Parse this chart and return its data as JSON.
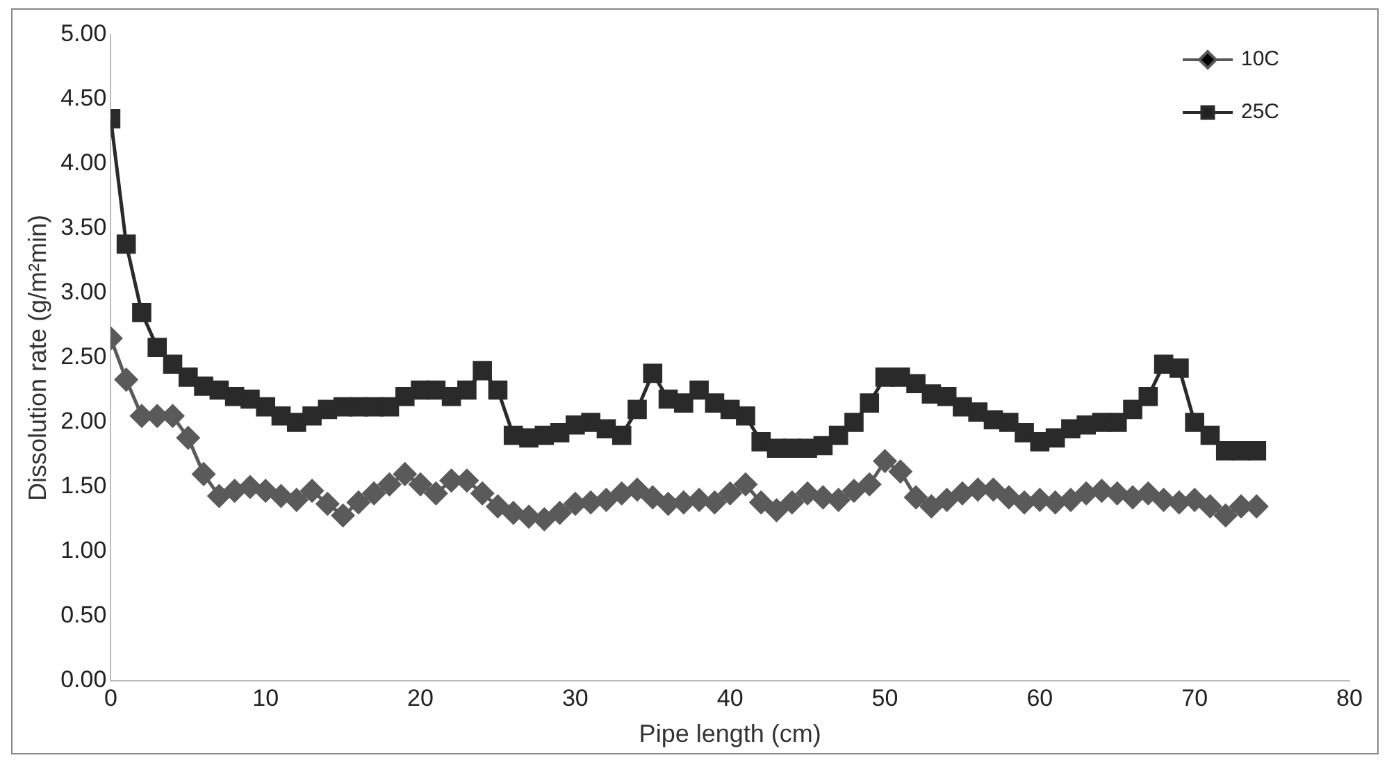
{
  "chart_data": {
    "type": "line",
    "xlabel": "Pipe length (cm)",
    "ylabel": "Dissolution rate (g/m²min)",
    "x": [
      0,
      1,
      2,
      3,
      4,
      5,
      6,
      7,
      8,
      9,
      10,
      11,
      12,
      13,
      14,
      15,
      16,
      17,
      18,
      19,
      20,
      21,
      22,
      23,
      24,
      25,
      26,
      27,
      28,
      29,
      30,
      31,
      32,
      33,
      34,
      35,
      36,
      37,
      38,
      39,
      40,
      41,
      42,
      43,
      44,
      45,
      46,
      47,
      48,
      49,
      50,
      51,
      52,
      53,
      54,
      55,
      56,
      57,
      58,
      59,
      60,
      61,
      62,
      63,
      64,
      65,
      66,
      67,
      68,
      69,
      70,
      71,
      72,
      73,
      74
    ],
    "series": [
      {
        "name": "10C",
        "color": "#5a5a5a",
        "marker": "diamond",
        "values": [
          2.65,
          2.33,
          2.05,
          2.05,
          2.05,
          1.88,
          1.6,
          1.43,
          1.47,
          1.5,
          1.47,
          1.43,
          1.4,
          1.47,
          1.37,
          1.28,
          1.38,
          1.45,
          1.52,
          1.6,
          1.52,
          1.45,
          1.55,
          1.55,
          1.45,
          1.35,
          1.3,
          1.27,
          1.25,
          1.3,
          1.37,
          1.38,
          1.4,
          1.45,
          1.48,
          1.42,
          1.37,
          1.38,
          1.4,
          1.38,
          1.45,
          1.52,
          1.38,
          1.32,
          1.38,
          1.45,
          1.42,
          1.4,
          1.47,
          1.52,
          1.7,
          1.62,
          1.42,
          1.35,
          1.4,
          1.45,
          1.48,
          1.48,
          1.42,
          1.38,
          1.4,
          1.38,
          1.4,
          1.45,
          1.47,
          1.45,
          1.42,
          1.45,
          1.4,
          1.38,
          1.4,
          1.35,
          1.28,
          1.35,
          1.35
        ]
      },
      {
        "name": "25C",
        "color": "#2a2a2a",
        "marker": "square",
        "values": [
          4.35,
          3.38,
          2.85,
          2.58,
          2.45,
          2.35,
          2.28,
          2.25,
          2.2,
          2.18,
          2.12,
          2.05,
          2.0,
          2.05,
          2.1,
          2.12,
          2.12,
          2.12,
          2.12,
          2.2,
          2.25,
          2.25,
          2.2,
          2.25,
          2.4,
          2.25,
          1.9,
          1.88,
          1.9,
          1.92,
          1.98,
          2.0,
          1.95,
          1.9,
          2.1,
          2.38,
          2.18,
          2.15,
          2.25,
          2.15,
          2.1,
          2.05,
          1.85,
          1.8,
          1.8,
          1.8,
          1.82,
          1.9,
          2.0,
          2.15,
          2.35,
          2.35,
          2.3,
          2.22,
          2.2,
          2.12,
          2.08,
          2.02,
          2.0,
          1.92,
          1.85,
          1.88,
          1.95,
          1.98,
          2.0,
          2.0,
          2.1,
          2.2,
          2.45,
          2.42,
          2.0,
          1.9,
          1.78,
          1.78,
          1.78
        ]
      }
    ],
    "xlim": [
      0,
      80
    ],
    "xticks": [
      0,
      10,
      20,
      30,
      40,
      50,
      60,
      70,
      80
    ],
    "ylim": [
      0,
      5
    ],
    "yticks": [
      {
        "value": 0,
        "label": "0.00"
      },
      {
        "value": 0.5,
        "label": "0.50"
      },
      {
        "value": 1,
        "label": "1.00"
      },
      {
        "value": 1.5,
        "label": "1.50"
      },
      {
        "value": 2,
        "label": "2.00"
      },
      {
        "value": 2.5,
        "label": "2.50"
      },
      {
        "value": 3,
        "label": "3.00"
      },
      {
        "value": 3.5,
        "label": "3.50"
      },
      {
        "value": 4,
        "label": "4.00"
      },
      {
        "value": 4.5,
        "label": "4.50"
      },
      {
        "value": 5,
        "label": "5.00"
      }
    ],
    "grid": false,
    "legend": "top right"
  }
}
